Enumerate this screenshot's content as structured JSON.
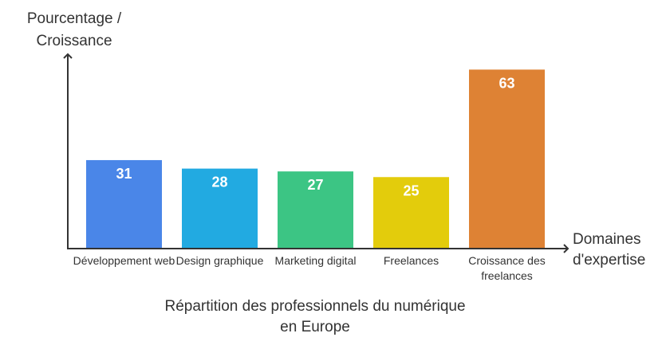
{
  "chart_data": {
    "type": "bar",
    "title": "",
    "caption": "Répartition des professionnels du numérique en Europe",
    "ylabel": "Pourcentage / Croissance",
    "xlabel": "Domaines d'expertise",
    "categories": [
      "Développement web",
      "Design graphique",
      "Marketing digital",
      "Freelances",
      "Croissance des freelances"
    ],
    "values": [
      31,
      28,
      27,
      25,
      63
    ],
    "colors": [
      "#4A86E8",
      "#22AAE1",
      "#3CC584",
      "#E3CC0C",
      "#DE8234"
    ],
    "ylim": [
      0,
      70
    ],
    "grid": false,
    "data_labels": true
  }
}
